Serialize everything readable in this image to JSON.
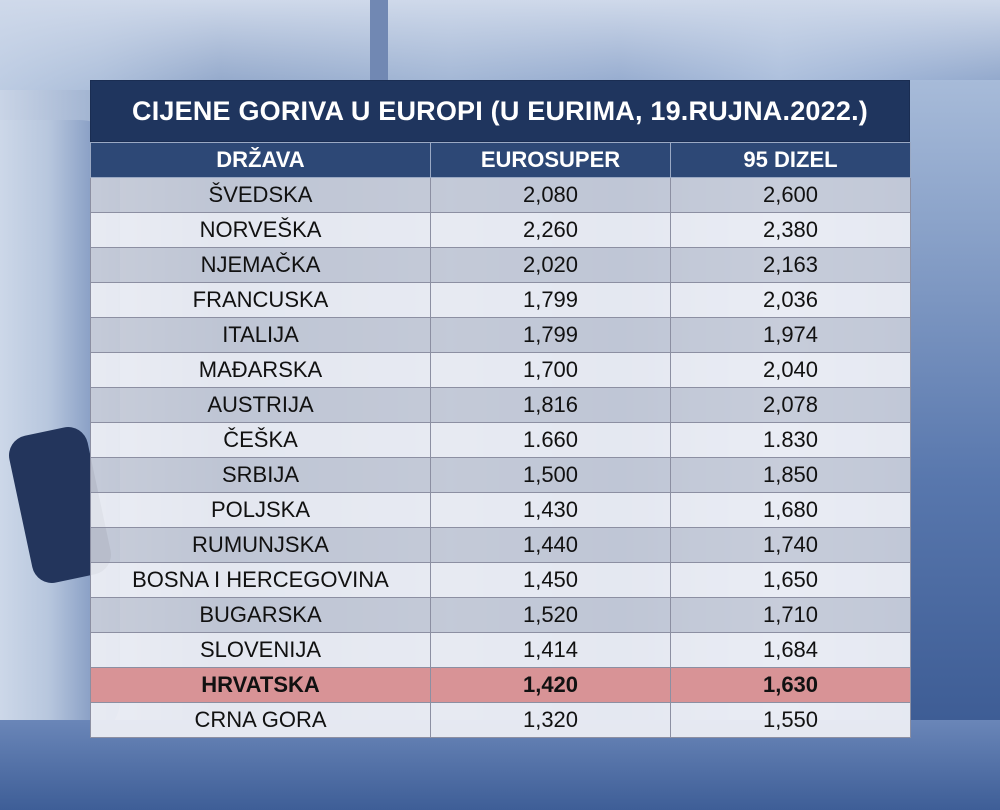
{
  "title": "CIJENE GORIVA U EUROPI (U EURIMA, 19.RUJNA.2022.)",
  "columns": [
    "DRŽAVA",
    "EUROSUPER",
    "95 DIZEL"
  ],
  "rows": [
    {
      "country": "ŠVEDSKA",
      "eurosuper": "2,080",
      "dizel": "2,600"
    },
    {
      "country": "NORVEŠKA",
      "eurosuper": "2,260",
      "dizel": "2,380"
    },
    {
      "country": "NJEMAČKA",
      "eurosuper": "2,020",
      "dizel": "2,163"
    },
    {
      "country": "FRANCUSKA",
      "eurosuper": "1,799",
      "dizel": "2,036"
    },
    {
      "country": "ITALIJA",
      "eurosuper": "1,799",
      "dizel": "1,974"
    },
    {
      "country": "MAĐARSKA",
      "eurosuper": "1,700",
      "dizel": "2,040"
    },
    {
      "country": "AUSTRIJA",
      "eurosuper": "1,816",
      "dizel": "2,078"
    },
    {
      "country": "ČEŠKA",
      "eurosuper": "1.660",
      "dizel": "1.830"
    },
    {
      "country": "SRBIJA",
      "eurosuper": "1,500",
      "dizel": "1,850"
    },
    {
      "country": "POLJSKA",
      "eurosuper": "1,430",
      "dizel": "1,680"
    },
    {
      "country": "RUMUNJSKA",
      "eurosuper": "1,440",
      "dizel": "1,740"
    },
    {
      "country": "BOSNA I HERCEGOVINA",
      "eurosuper": "1,450",
      "dizel": "1,650"
    },
    {
      "country": "BUGARSKA",
      "eurosuper": "1,520",
      "dizel": "1,710"
    },
    {
      "country": "SLOVENIJA",
      "eurosuper": "1,414",
      "dizel": "1,684"
    },
    {
      "country": "HRVATSKA",
      "eurosuper": "1,420",
      "dizel": "1,630",
      "highlight": true
    },
    {
      "country": "CRNA GORA",
      "eurosuper": "1,320",
      "dizel": "1,550"
    }
  ],
  "colors": {
    "title_bg": "#1f355e",
    "header_bg": "#2d4876",
    "highlight_bg": "#d89396"
  }
}
